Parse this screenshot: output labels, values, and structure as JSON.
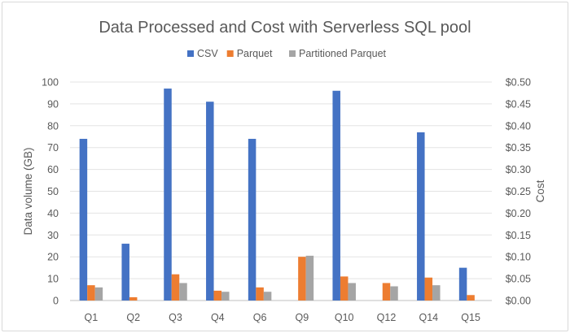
{
  "chart_data": {
    "type": "bar",
    "title": "Data Processed and Cost with Serverless SQL pool",
    "categories": [
      "Q1",
      "Q2",
      "Q3",
      "Q4",
      "Q6",
      "Q9",
      "Q10",
      "Q12",
      "Q14",
      "Q15"
    ],
    "series": [
      {
        "name": "CSV",
        "color": "#4472c4",
        "values": [
          74,
          26,
          97,
          91,
          74,
          null,
          96,
          null,
          77,
          15
        ]
      },
      {
        "name": "Parquet",
        "color": "#ed7d31",
        "values": [
          7,
          1.5,
          12,
          4.5,
          6,
          20,
          11,
          8,
          10.5,
          2.5
        ]
      },
      {
        "name": "Partitioned Parquet",
        "color": "#a5a5a5",
        "values": [
          6,
          null,
          8,
          4,
          4,
          20.5,
          8,
          6.5,
          7,
          null
        ]
      }
    ],
    "ylabel": "Data volume (GB)",
    "ylim": [
      0,
      100
    ],
    "yticks": [
      "0",
      "10",
      "20",
      "30",
      "40",
      "50",
      "60",
      "70",
      "80",
      "90",
      "100"
    ],
    "y2label": "Cost",
    "y2lim": [
      0,
      0.5
    ],
    "y2ticks": [
      "$0.00",
      "$0.05",
      "$0.10",
      "$0.15",
      "$0.20",
      "$0.25",
      "$0.30",
      "$0.35",
      "$0.40",
      "$0.45",
      "$0.50"
    ],
    "legend_position": "top"
  }
}
